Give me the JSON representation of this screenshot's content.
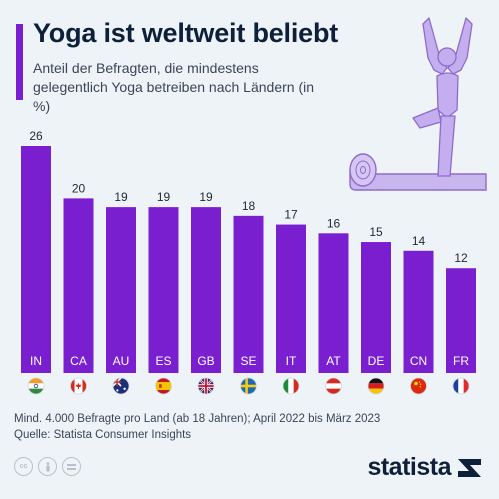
{
  "header": {
    "title": "Yoga ist weltweit beliebt",
    "subtitle": "Anteil der Befragten, die mindestens gelegentlich Yoga betreiben nach Ländern (in %)"
  },
  "chart_data": {
    "type": "bar",
    "categories": [
      "IN",
      "CA",
      "AU",
      "ES",
      "GB",
      "SE",
      "IT",
      "AT",
      "DE",
      "CN",
      "FR"
    ],
    "values": [
      26,
      20,
      19,
      19,
      19,
      18,
      17,
      16,
      15,
      14,
      12
    ],
    "ylim": [
      0,
      26
    ],
    "bar_color": "#7a1fd0",
    "flags": [
      "flag-india",
      "flag-canada",
      "flag-australia",
      "flag-spain",
      "flag-uk",
      "flag-sweden",
      "flag-italy",
      "flag-austria",
      "flag-germany",
      "flag-china",
      "flag-france"
    ]
  },
  "footer": {
    "note": "Mind. 4.000 Befragte pro Land (ab 18 Jahren); April 2022 bis März 2023",
    "source": "Quelle: Statista Consumer Insights",
    "license_icons": [
      "cc-icon",
      "by-icon",
      "equals-icon"
    ],
    "brand": "statista"
  },
  "illustration": {
    "icon": "yoga-tree-pose-icon",
    "color": "#c8b3ee"
  }
}
